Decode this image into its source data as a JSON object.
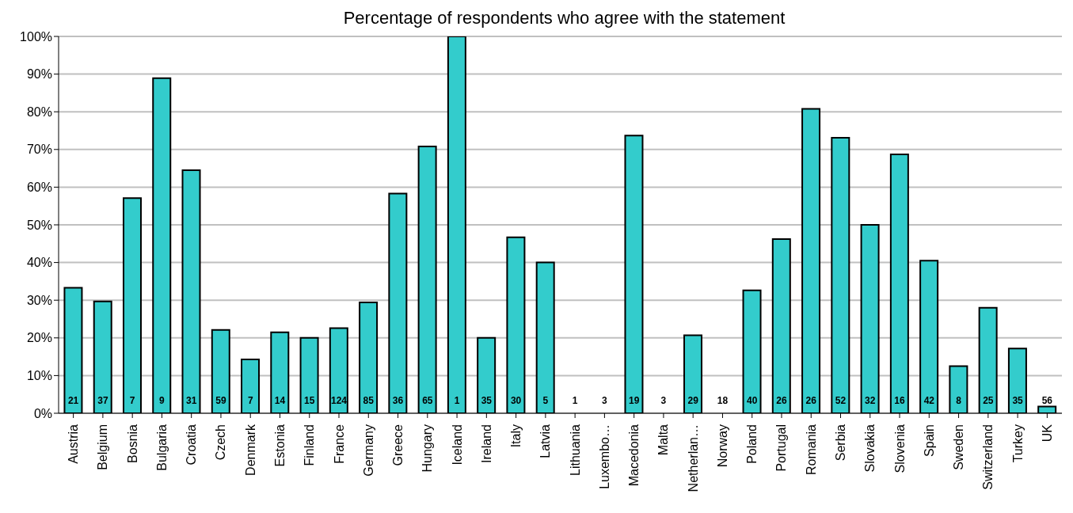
{
  "chart_data": {
    "type": "bar",
    "title": "Percentage of respondents who agree with the statement",
    "categories": [
      "Austria",
      "Belgium",
      "Bosnia",
      "Bulgaria",
      "Croatia",
      "Czech",
      "Denmark",
      "Estonia",
      "Finland",
      "France",
      "Germany",
      "Greece",
      "Hungary",
      "Iceland",
      "Ireland",
      "Italy",
      "Latvia",
      "Lithuania",
      "Luxembo…",
      "Macedonia",
      "Malta",
      "Netherlan…",
      "Norway",
      "Poland",
      "Portugal",
      "Romania",
      "Serbia",
      "Slovakia",
      "Slovenia",
      "Spain",
      "Sweden",
      "Switzerland",
      "Turkey",
      "UK"
    ],
    "values": [
      33.3,
      29.7,
      57.1,
      88.9,
      64.5,
      22.1,
      14.3,
      21.5,
      20,
      22.6,
      29.4,
      58.3,
      70.8,
      100,
      20,
      46.7,
      40,
      0,
      0,
      73.7,
      0,
      20.7,
      0,
      32.6,
      46.2,
      80.8,
      73.1,
      50,
      68.7,
      40.5,
      12.5,
      28,
      17.2,
      1.8
    ],
    "color": "#33cccc",
    "ylim": [
      0,
      100
    ],
    "yticks": [
      {
        "value": 0,
        "label": "0%"
      },
      {
        "value": 10,
        "label": "10%"
      },
      {
        "value": 20,
        "label": "20%"
      },
      {
        "value": 30,
        "label": "30%"
      },
      {
        "value": 40,
        "label": "40%"
      },
      {
        "value": 50,
        "label": "50%"
      },
      {
        "value": 60,
        "label": "60%"
      },
      {
        "value": 70,
        "label": "70%"
      },
      {
        "value": 80,
        "label": "80%"
      },
      {
        "value": 90,
        "label": "90%"
      },
      {
        "value": 100,
        "label": "100%"
      }
    ],
    "grid": "y",
    "annotations": [
      "21",
      "37",
      "7",
      "9",
      "31",
      "59",
      "7",
      "14",
      "15",
      "124",
      "85",
      "36",
      "65",
      "1",
      "35",
      "30",
      "5",
      "1",
      "3",
      "19",
      "3",
      "29",
      "18",
      "40",
      "26",
      "26",
      "52",
      "32",
      "16",
      "42",
      "8",
      "25",
      "35",
      "56"
    ]
  }
}
